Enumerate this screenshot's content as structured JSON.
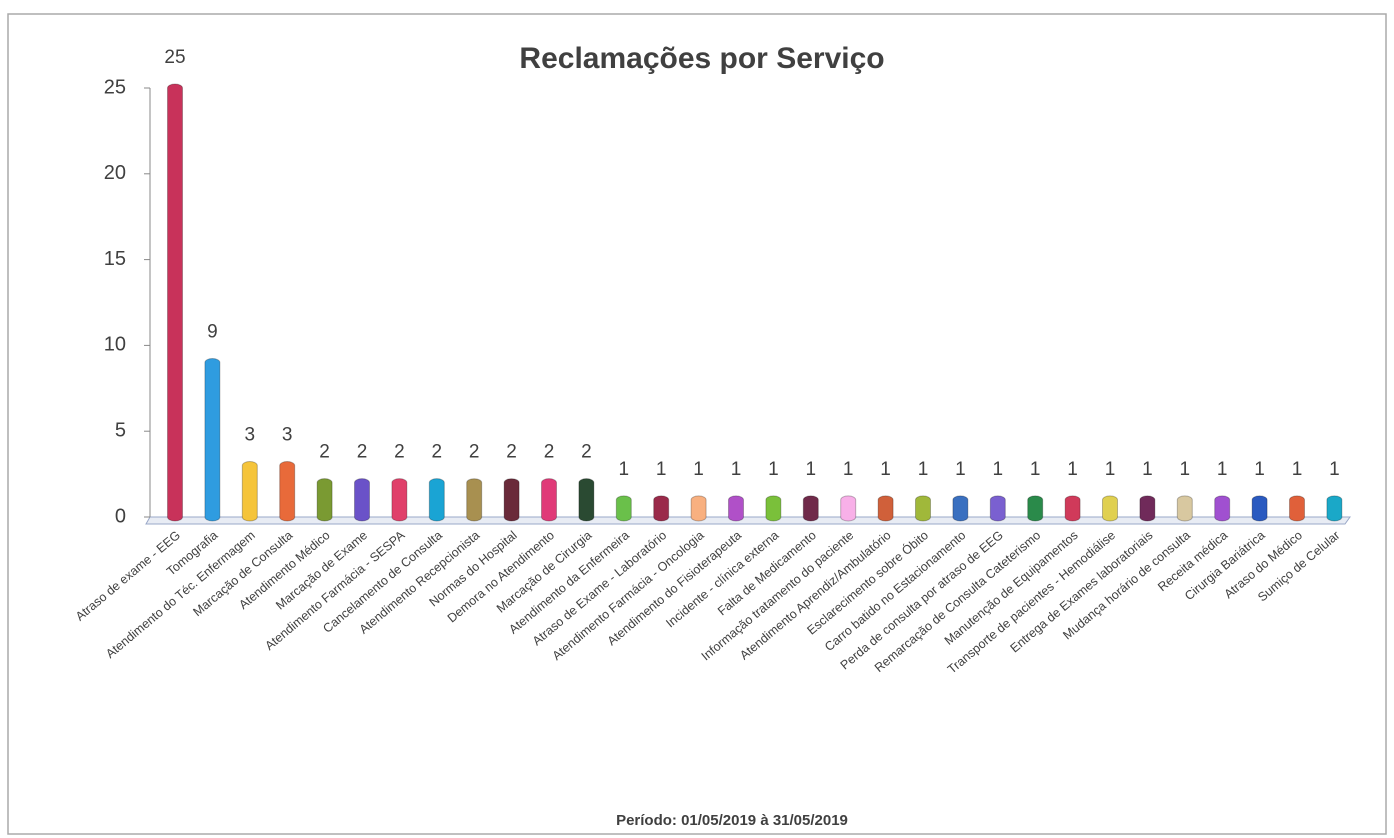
{
  "chart_data": {
    "type": "bar",
    "title": "Reclamações por Serviço",
    "subtitle": "Período: 01/05/2019 à 31/05/2019",
    "categories": [
      "Atraso de exame - EEG",
      "Tomografia",
      "Atendimento do Téc. Enfermagem",
      "Marcação de Consulta",
      "Atendimento Médico",
      "Marcação de Exame",
      "Atendimento Farmácia - SESPA",
      "Cancelamento de Consulta",
      "Atendimento Recepcionista",
      "Normas do Hospital",
      "Demora no Atendimento",
      "Marcação de Cirurgia",
      "Atendimento da Enfermeira",
      "Atraso de Exame - Laboratório",
      "Atendimento Farmácia - Oncologia",
      "Atendimento do Fisioterapeuta",
      "Incidente - clínica externa",
      "Falta de Medicamento",
      "Informação tratamento do paciente",
      "Atendimento Aprendiz/Ambulatório",
      "Esclarecimento sobre Óbito",
      "Carro batido no Estacionamento",
      "Perda de consulta por atraso de EEG",
      "Remarcação de Consulta Cateterismo",
      "Manutenção de Equipamentos",
      "Transporte de pacientes - Hemodiálise",
      "Entrega de Exames laboratoriais",
      "Mudança horário de consulta",
      "Receita médica",
      "Cirurgia Bariátrica",
      "Atraso do Médico",
      "Sumiço de Celular"
    ],
    "values": [
      25,
      9,
      3,
      3,
      2,
      2,
      2,
      2,
      2,
      2,
      2,
      2,
      1,
      1,
      1,
      1,
      1,
      1,
      1,
      1,
      1,
      1,
      1,
      1,
      1,
      1,
      1,
      1,
      1,
      1,
      1,
      1
    ],
    "colors": [
      "#c8325a",
      "#2f9ce0",
      "#f5c43a",
      "#e86a3a",
      "#7a9a32",
      "#6a52c8",
      "#e0406a",
      "#1aa4d4",
      "#a89050",
      "#6a2a3a",
      "#e03a78",
      "#2a4a32",
      "#6ac04a",
      "#9a2a4a",
      "#f8b080",
      "#b050c8",
      "#7ac03a",
      "#702a4a",
      "#f8b0e8",
      "#d0603a",
      "#a0b83a",
      "#3a70c0",
      "#7a60d0",
      "#2a8a4a",
      "#d03a5a",
      "#e0d050",
      "#702a5a",
      "#d8c8a0",
      "#a050d0",
      "#2a5ac0",
      "#e0603a",
      "#1aa8c8"
    ],
    "ylim": [
      0,
      25
    ],
    "yticks": [
      0,
      5,
      10,
      15,
      20,
      25
    ]
  }
}
